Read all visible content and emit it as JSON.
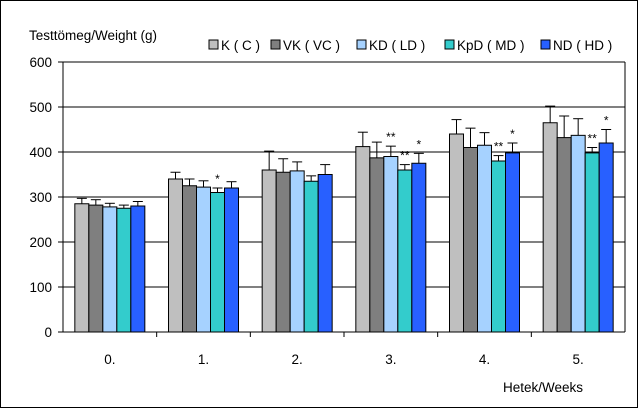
{
  "chart_data": {
    "type": "bar",
    "ylabel": "Testtömeg/Weight (g)",
    "xlabel": "Hetek/Weeks",
    "categories": [
      "0.",
      "1.",
      "2.",
      "3.",
      "4.",
      "5."
    ],
    "ylim": [
      0,
      600
    ],
    "yticks": [
      "0",
      "100",
      "200",
      "300",
      "400",
      "500",
      "600"
    ],
    "grid": true,
    "legend_position": "top-right",
    "series": [
      {
        "name": "K ( C )",
        "color": "#bfbfbf",
        "values": [
          285,
          340,
          360,
          412,
          440,
          465
        ],
        "errors": [
          12,
          15,
          42,
          32,
          32,
          37
        ],
        "marks": [
          "",
          "",
          "",
          "",
          "",
          ""
        ]
      },
      {
        "name": "VK ( VC )",
        "color": "#7f7f7f",
        "values": [
          282,
          325,
          355,
          387,
          410,
          432
        ],
        "errors": [
          12,
          15,
          30,
          35,
          43,
          48
        ],
        "marks": [
          "",
          "",
          "",
          "",
          "",
          ""
        ]
      },
      {
        "name": "KD ( LD )",
        "color": "#a6d2ff",
        "values": [
          278,
          322,
          358,
          390,
          415,
          437
        ],
        "errors": [
          8,
          14,
          20,
          23,
          28,
          37
        ],
        "marks": [
          "",
          "",
          "",
          "**",
          "",
          ""
        ]
      },
      {
        "name": "KpD ( MD )",
        "color": "#33cccc",
        "values": [
          275,
          310,
          335,
          360,
          380,
          398
        ],
        "errors": [
          7,
          10,
          12,
          12,
          12,
          12
        ],
        "marks": [
          "",
          "*",
          "",
          "**",
          "**",
          "**"
        ]
      },
      {
        "name": "ND ( HD )",
        "color": "#2860ff",
        "values": [
          280,
          320,
          350,
          375,
          398,
          420
        ],
        "errors": [
          10,
          14,
          22,
          22,
          22,
          30
        ],
        "marks": [
          "",
          "",
          "",
          "*",
          "*",
          "*"
        ]
      }
    ]
  }
}
